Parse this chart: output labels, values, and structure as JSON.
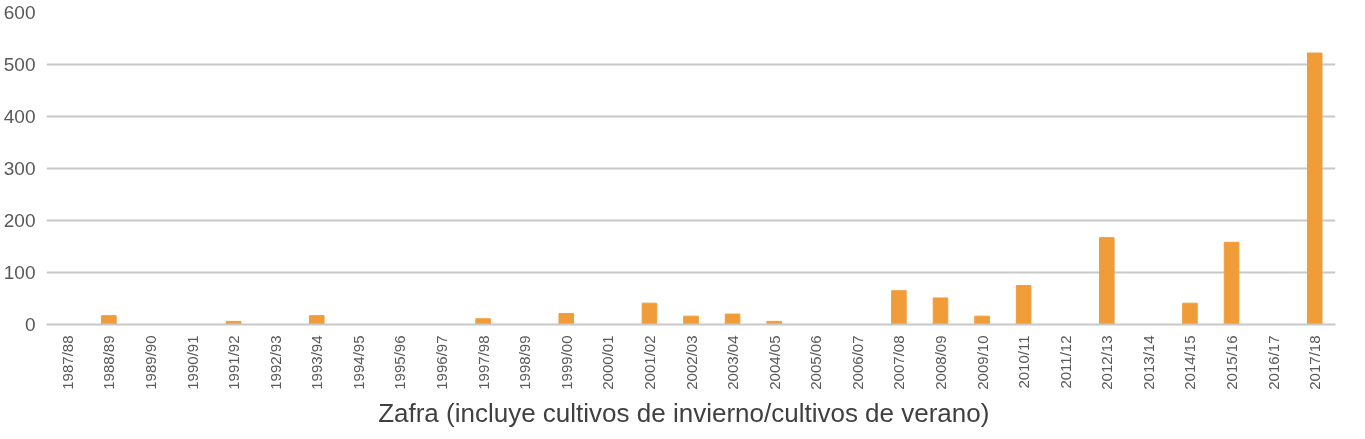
{
  "chart_data": {
    "type": "bar",
    "xlabel": "Zafra (incluye cultivos  de invierno/cultivos  de verano)",
    "categories": [
      "1987/88",
      "1988/89",
      "1989/90",
      "1990/91",
      "1991/92",
      "1992/93",
      "1993/94",
      "1994/95",
      "1995/96",
      "1996/97",
      "1997/98",
      "1998/99",
      "1999/00",
      "2000/01",
      "2001/02",
      "2002/03",
      "2003/04",
      "2004/05",
      "2005/06",
      "2006/07",
      "2007/08",
      "2008/09",
      "2009/10",
      "2010/11",
      "2011/12",
      "2012/13",
      "2013/14",
      "2014/15",
      "2015/16",
      "2016/17",
      "2017/18"
    ],
    "values": [
      0,
      17,
      0,
      0,
      6,
      0,
      17,
      0,
      0,
      0,
      11,
      0,
      21,
      0,
      41,
      16,
      20,
      6,
      0,
      0,
      65,
      51,
      16,
      75,
      0,
      167,
      0,
      41,
      158,
      0,
      522
    ],
    "color": "#f09c38",
    "ylim": [
      0,
      600
    ],
    "yticks": [
      0,
      100,
      200,
      300,
      400,
      500,
      600
    ],
    "grid": "y"
  }
}
